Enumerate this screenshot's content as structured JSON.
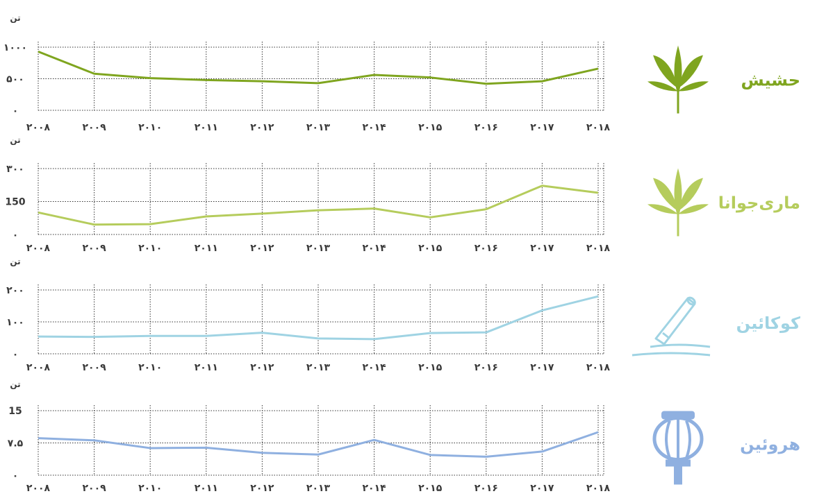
{
  "chart_data": [
    {
      "type": "line",
      "title": "حشیش",
      "unit": "تن",
      "x": [
        "۲۰۰۸",
        "۲۰۰۹",
        "۲۰۱۰",
        "۲۰۱۱",
        "۲۰۱۲",
        "۲۰۱۳",
        "۲۰۱۴",
        "۲۰۱۵",
        "۲۰۱۶",
        "۲۰۱۷",
        "۲۰۱۸"
      ],
      "values": [
        930,
        580,
        510,
        480,
        460,
        430,
        560,
        520,
        420,
        460,
        660
      ],
      "ylim": [
        0,
        1000
      ],
      "yticks": [
        0,
        500,
        1000
      ],
      "ytick_labels": [
        "۰",
        "۵۰۰",
        "۱۰۰۰"
      ],
      "color": "#7fa51f",
      "icon": "hashish-leaf-icon"
    },
    {
      "type": "line",
      "title": "ماری‌جوانا",
      "unit": "تن",
      "x": [
        "۲۰۰۸",
        "۲۰۰۹",
        "۲۰۱۰",
        "۲۰۱۱",
        "۲۰۱۲",
        "۲۰۱۳",
        "۲۰۱۴",
        "۲۰۱۵",
        "۲۰۱۶",
        "۲۰۱۷",
        "۲۰۱۸"
      ],
      "values": [
        100,
        45,
        47,
        82,
        95,
        110,
        118,
        78,
        115,
        222,
        190
      ],
      "ylim": [
        0,
        300
      ],
      "yticks": [
        0,
        150,
        300
      ],
      "ytick_labels": [
        "۰",
        "150",
        "۳۰۰"
      ],
      "color": "#b5cc5c",
      "icon": "marijuana-leaf-icon"
    },
    {
      "type": "line",
      "title": "کوکائین",
      "unit": "تن",
      "x": [
        "۲۰۰۸",
        "۲۰۰۹",
        "۲۰۱۰",
        "۲۰۱۱",
        "۲۰۱۲",
        "۲۰۱۳",
        "۲۰۱۴",
        "۲۰۱۵",
        "۲۰۱۶",
        "۲۰۱۷",
        "۲۰۱۸"
      ],
      "values": [
        54,
        53,
        56,
        56,
        66,
        48,
        46,
        65,
        67,
        136,
        180
      ],
      "ylim": [
        0,
        200
      ],
      "yticks": [
        0,
        100,
        200
      ],
      "ytick_labels": [
        "۰",
        "۱۰۰",
        "۲۰۰"
      ],
      "color": "#9fd3e3",
      "icon": "cocaine-icon"
    },
    {
      "type": "line",
      "title": "هروئین",
      "unit": "تن",
      "x": [
        "2008",
        "2009",
        "2010",
        "2011",
        "2012",
        "2013",
        "2014",
        "2015",
        "2016",
        "2017",
        "2018"
      ],
      "x_labels": [
        "۲۰۰۸",
        "۲۰۰۹",
        "۲۰۱۰",
        "۲۰۱۱",
        "۲۰۱۲",
        "۲۰۱۳",
        "۲۰۱۴",
        "۲۰۱۵",
        "۲۰۱۶",
        "۲۰۱۷",
        "۲۰۱۸"
      ],
      "values": [
        8.6,
        8.1,
        6.3,
        6.4,
        5.2,
        4.8,
        8.2,
        4.7,
        4.3,
        5.5,
        10.0
      ],
      "ylim": [
        0,
        15
      ],
      "yticks": [
        0,
        7.5,
        15
      ],
      "ytick_labels": [
        "۰",
        "۷.۵",
        "15"
      ],
      "color": "#8fb0e0",
      "icon": "poppy-icon"
    }
  ]
}
